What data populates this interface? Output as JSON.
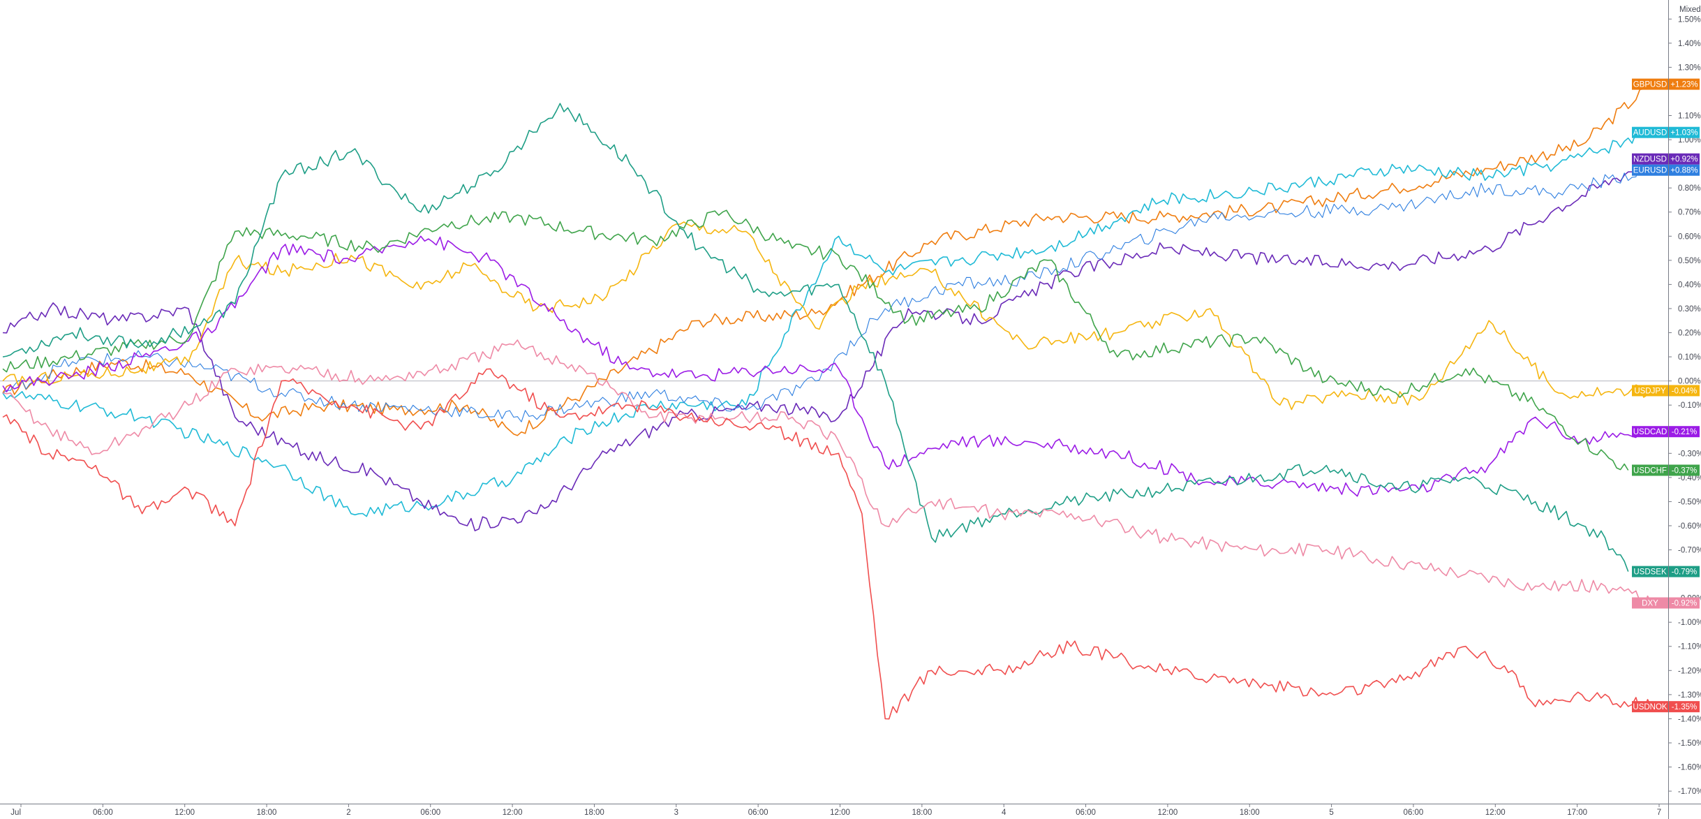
{
  "chart_data": {
    "type": "line",
    "scale_label": "Mixed",
    "x_tick_labels": [
      "Jul",
      "06:00",
      "12:00",
      "18:00",
      "2",
      "06:00",
      "12:00",
      "18:00",
      "3",
      "06:00",
      "12:00",
      "18:00",
      "4",
      "06:00",
      "12:00",
      "18:00",
      "5",
      "06:00",
      "12:00",
      "17:00",
      "7"
    ],
    "y_tick_values": [
      1.5,
      1.4,
      1.3,
      1.1,
      1.0,
      0.8,
      0.7,
      0.6,
      0.5,
      0.4,
      0.3,
      0.2,
      0.1,
      0.0,
      -0.1,
      -0.3,
      -0.4,
      -0.5,
      -0.6,
      -0.7,
      -0.9,
      -1.0,
      -1.1,
      -1.2,
      -1.3,
      -1.4,
      -1.5,
      -1.6,
      -1.7
    ],
    "ylim": [
      -1.72,
      1.55
    ],
    "grid": false,
    "zero_line": true,
    "series": [
      {
        "name": "GBPUSD",
        "value_label": "+1.23%",
        "color": "#ef7d0f",
        "x": [
          0,
          2,
          5,
          8,
          11,
          14,
          17,
          20,
          22,
          25,
          30,
          35,
          40,
          45,
          50,
          55,
          60,
          64,
          68,
          71
        ],
        "values": [
          -0.05,
          0.02,
          0.08,
          0.03,
          -0.15,
          -0.1,
          -0.12,
          -0.1,
          -0.22,
          -0.05,
          0.25,
          0.28,
          0.58,
          0.68,
          0.68,
          0.72,
          0.8,
          0.88,
          0.98,
          1.23
        ]
      },
      {
        "name": "AUDUSD",
        "value_label": "+1.03%",
        "color": "#1fbad6",
        "x": [
          0,
          3,
          6,
          9,
          12,
          15,
          19,
          22,
          25,
          28,
          32,
          36,
          38,
          41,
          45,
          50,
          55,
          60,
          64,
          67,
          71
        ],
        "values": [
          -0.05,
          -0.1,
          -0.15,
          -0.25,
          -0.35,
          -0.55,
          -0.5,
          -0.4,
          -0.2,
          -0.1,
          -0.1,
          0.6,
          0.45,
          0.5,
          0.55,
          0.75,
          0.8,
          0.88,
          0.85,
          0.9,
          1.03
        ]
      },
      {
        "name": "NZDUSD",
        "value_label": "+0.92%",
        "color": "#6a2ab8",
        "x": [
          0,
          2,
          5,
          8,
          10,
          13,
          16,
          18,
          20,
          23,
          26,
          29,
          33,
          36,
          39,
          42,
          46,
          50,
          55,
          60,
          64,
          67,
          71
        ],
        "values": [
          0.2,
          0.3,
          0.25,
          0.3,
          -0.15,
          -0.3,
          -0.38,
          -0.5,
          -0.6,
          -0.55,
          -0.3,
          -0.15,
          -0.1,
          -0.15,
          0.3,
          0.25,
          0.45,
          0.55,
          0.5,
          0.48,
          0.55,
          0.72,
          0.92
        ]
      },
      {
        "name": "EURUSD",
        "value_label": "+0.88%",
        "color": "#2e7fe0",
        "x": [
          0,
          3,
          6,
          9,
          12,
          15,
          19,
          22,
          25,
          28,
          32,
          35,
          38,
          41,
          44,
          48,
          52,
          56,
          60,
          64,
          67,
          71
        ],
        "values": [
          -0.05,
          0.08,
          0.1,
          0.05,
          -0.05,
          -0.1,
          -0.12,
          -0.15,
          -0.1,
          -0.05,
          -0.12,
          0.0,
          0.3,
          0.4,
          0.42,
          0.55,
          0.68,
          0.7,
          0.72,
          0.8,
          0.78,
          0.88
        ]
      },
      {
        "name": "USDJPY",
        "value_label": "-0.04%",
        "color": "#f5b50f",
        "x": [
          0,
          3,
          6,
          8,
          10,
          12,
          15,
          18,
          20,
          23,
          26,
          29,
          32,
          35,
          37,
          40,
          44,
          48,
          52,
          55,
          58,
          61,
          64,
          67,
          71
        ],
        "values": [
          0.0,
          0.02,
          0.05,
          0.08,
          0.5,
          0.45,
          0.52,
          0.38,
          0.48,
          0.3,
          0.35,
          0.65,
          0.62,
          0.22,
          0.4,
          0.45,
          0.15,
          0.2,
          0.3,
          -0.1,
          -0.05,
          -0.08,
          0.25,
          -0.05,
          -0.04
        ]
      },
      {
        "name": "USDCAD",
        "value_label": "-0.21%",
        "color": "#9b1be6",
        "x": [
          0,
          3,
          6,
          9,
          12,
          15,
          18,
          21,
          24,
          27,
          30,
          33,
          36,
          38,
          41,
          44,
          48,
          52,
          55,
          58,
          61,
          64,
          66,
          68,
          71
        ],
        "values": [
          -0.02,
          0.02,
          0.1,
          0.2,
          0.55,
          0.5,
          0.6,
          0.5,
          0.25,
          0.05,
          0.02,
          0.05,
          0.05,
          -0.35,
          -0.25,
          -0.25,
          -0.3,
          -0.42,
          -0.42,
          -0.45,
          -0.45,
          -0.35,
          -0.15,
          -0.25,
          -0.21
        ]
      },
      {
        "name": "USDCHF",
        "value_label": "-0.37%",
        "color": "#3fa44b",
        "x": [
          0,
          3,
          6,
          8,
          10,
          13,
          16,
          19,
          22,
          25,
          28,
          31,
          34,
          36,
          39,
          42,
          45,
          48,
          51,
          54,
          57,
          60,
          63,
          66,
          68,
          70
        ],
        "values": [
          0.05,
          0.1,
          0.15,
          0.18,
          0.62,
          0.6,
          0.55,
          0.65,
          0.68,
          0.62,
          0.58,
          0.7,
          0.55,
          0.52,
          0.25,
          0.3,
          0.5,
          0.1,
          0.15,
          0.18,
          0.0,
          -0.05,
          0.05,
          -0.1,
          -0.25,
          -0.37
        ]
      },
      {
        "name": "USDSEK",
        "value_label": "-0.79%",
        "color": "#1e9e86",
        "x": [
          0,
          3,
          6,
          9,
          10,
          12,
          15,
          18,
          21,
          24,
          27,
          30,
          33,
          36,
          38,
          40,
          43,
          46,
          50,
          54,
          57,
          60,
          63,
          66,
          69,
          70
        ],
        "values": [
          0.1,
          0.2,
          0.15,
          0.25,
          0.32,
          0.85,
          0.95,
          0.7,
          0.85,
          1.15,
          0.9,
          0.55,
          0.35,
          0.4,
          0.0,
          -0.65,
          -0.55,
          -0.5,
          -0.45,
          -0.4,
          -0.35,
          -0.45,
          -0.4,
          -0.5,
          -0.65,
          -0.79
        ]
      },
      {
        "name": "DXY",
        "value_label": "-0.92%",
        "color": "#ee8aa6",
        "x": [
          0,
          2,
          4,
          6,
          8,
          10,
          13,
          16,
          19,
          22,
          25,
          28,
          31,
          34,
          36,
          38,
          40,
          43,
          46,
          50,
          54,
          57,
          60,
          63,
          66,
          69,
          71
        ],
        "values": [
          -0.05,
          -0.2,
          -0.3,
          -0.2,
          -0.1,
          0.05,
          0.05,
          0.0,
          0.05,
          0.15,
          0.05,
          -0.15,
          -0.15,
          -0.15,
          -0.25,
          -0.6,
          -0.5,
          -0.55,
          -0.55,
          -0.65,
          -0.7,
          -0.7,
          -0.75,
          -0.8,
          -0.85,
          -0.85,
          -0.92
        ]
      },
      {
        "name": "USDNOK",
        "value_label": "-1.35%",
        "color": "#f04e4e",
        "x": [
          0,
          2,
          4,
          6,
          8,
          10,
          12,
          15,
          18,
          21,
          24,
          27,
          30,
          33,
          36,
          37,
          38,
          40,
          43,
          46,
          50,
          54,
          57,
          60,
          63,
          65,
          66,
          68,
          71
        ],
        "values": [
          -0.15,
          -0.3,
          -0.35,
          -0.55,
          -0.45,
          -0.6,
          0.0,
          -0.1,
          -0.2,
          0.05,
          -0.15,
          -0.1,
          -0.15,
          -0.2,
          -0.3,
          -0.55,
          -1.4,
          -1.2,
          -1.2,
          -1.1,
          -1.2,
          -1.25,
          -1.3,
          -1.25,
          -1.1,
          -1.2,
          -1.35,
          -1.3,
          -1.35
        ]
      }
    ]
  }
}
